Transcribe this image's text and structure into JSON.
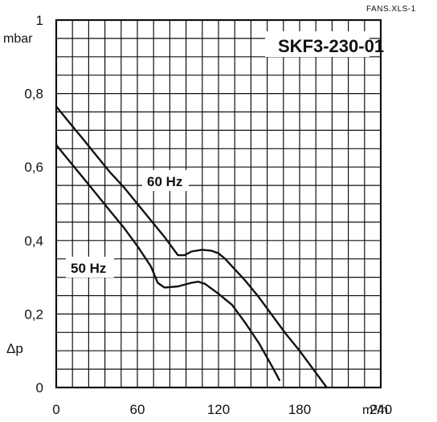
{
  "file_label": "FANS.XLS-1",
  "chart_data": {
    "type": "line",
    "title": "SKF3-230-01",
    "x_unit_label": "m³/h",
    "y_unit_label": "mbar",
    "y_symbol_label": "Δp",
    "xlim": [
      0,
      240
    ],
    "ylim": [
      0,
      1
    ],
    "x_ticks": [
      {
        "value": 0,
        "label": "0"
      },
      {
        "value": 60,
        "label": "60"
      },
      {
        "value": 120,
        "label": "120"
      },
      {
        "value": 180,
        "label": "180"
      },
      {
        "value": 240,
        "label": "240"
      }
    ],
    "y_ticks": [
      {
        "value": 0,
        "label": "0"
      },
      {
        "value": 0.2,
        "label": "0,2"
      },
      {
        "value": 0.4,
        "label": "0,4"
      },
      {
        "value": 0.6,
        "label": "0,6"
      },
      {
        "value": 0.8,
        "label": "0,8"
      },
      {
        "value": 1,
        "label": "1"
      }
    ],
    "grid": {
      "x_step": 12,
      "y_step": 0.05
    },
    "series": [
      {
        "name": "60 Hz",
        "x": [
          0,
          10,
          20,
          30,
          40,
          50,
          60,
          70,
          80,
          85,
          90,
          95,
          100,
          108,
          115,
          120,
          125,
          130,
          140,
          150,
          160,
          170,
          180,
          190,
          200
        ],
        "y": [
          0.765,
          0.72,
          0.675,
          0.63,
          0.585,
          0.545,
          0.5,
          0.455,
          0.41,
          0.385,
          0.36,
          0.36,
          0.37,
          0.375,
          0.372,
          0.365,
          0.35,
          0.33,
          0.29,
          0.245,
          0.195,
          0.145,
          0.1,
          0.05,
          0.0
        ]
      },
      {
        "name": "50 Hz",
        "x": [
          0,
          10,
          20,
          30,
          40,
          50,
          60,
          70,
          75,
          80,
          90,
          100,
          105,
          110,
          120,
          130,
          140,
          150,
          160,
          165
        ],
        "y": [
          0.66,
          0.615,
          0.57,
          0.525,
          0.48,
          0.435,
          0.385,
          0.33,
          0.285,
          0.272,
          0.275,
          0.285,
          0.288,
          0.282,
          0.255,
          0.225,
          0.175,
          0.12,
          0.055,
          0.02
        ]
      }
    ]
  }
}
